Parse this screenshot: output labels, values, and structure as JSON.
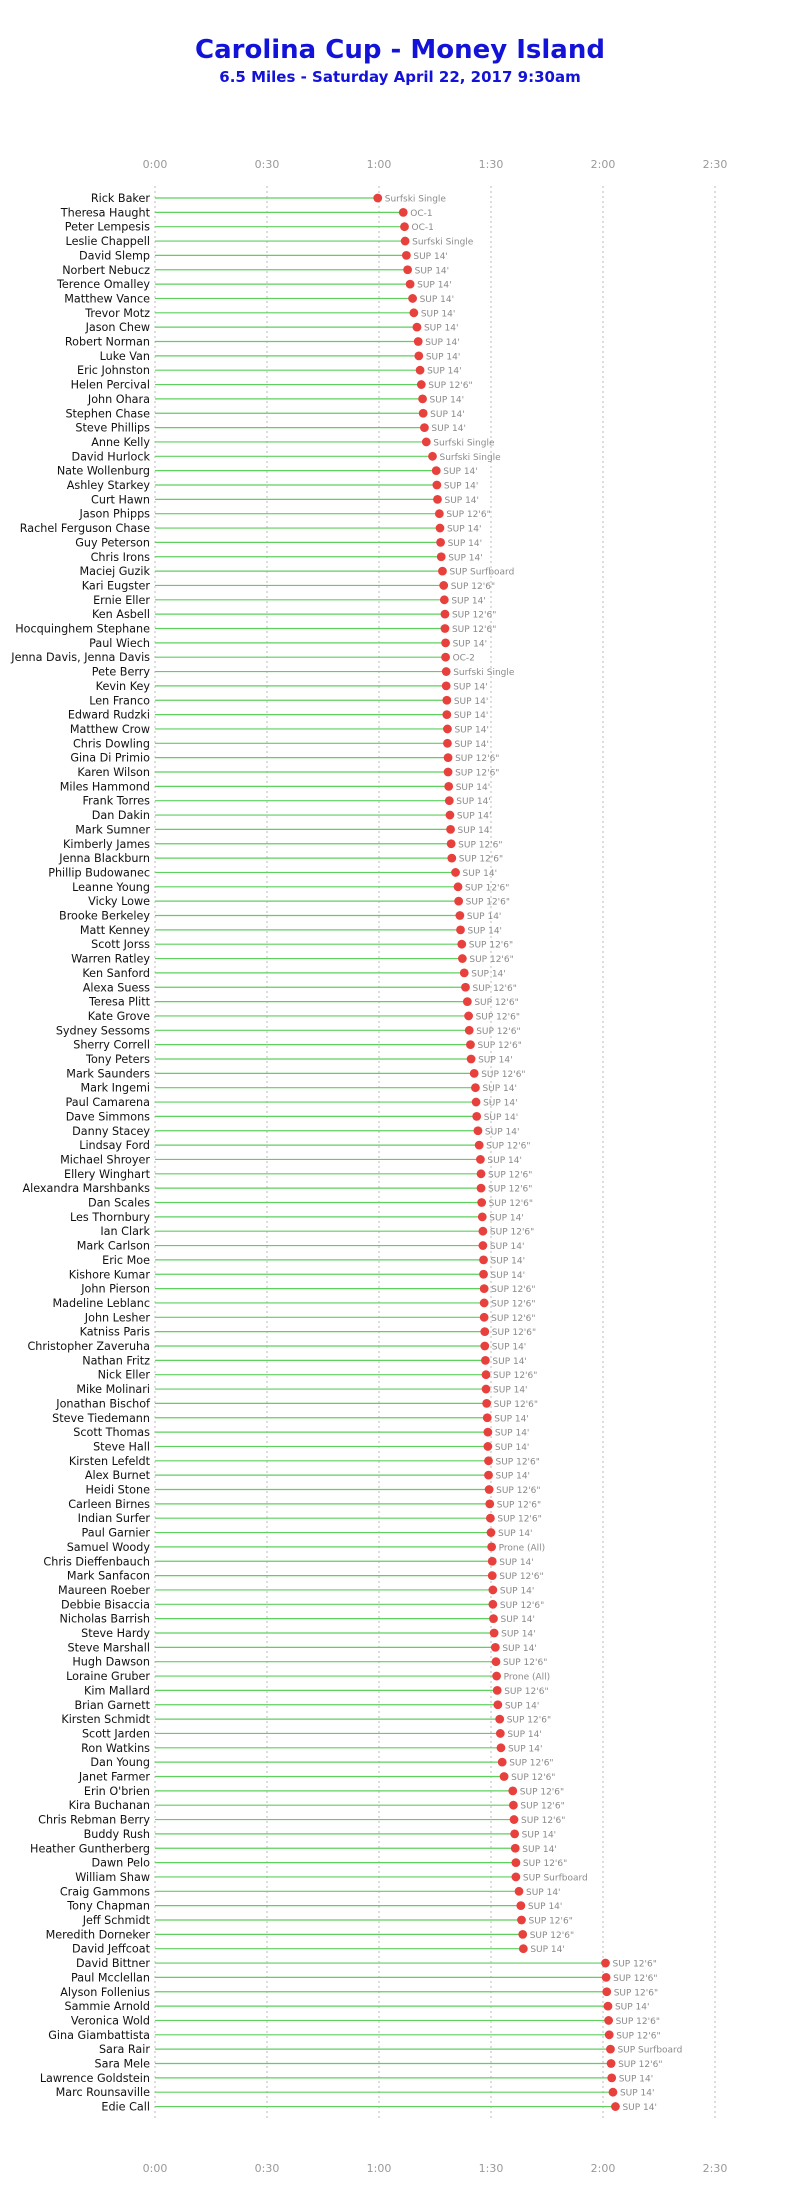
{
  "chart_data": {
    "type": "scatter",
    "title": "Carolina Cup - Money Island",
    "subtitle": "6.5 Miles - Saturday April 22, 2017 9:30am",
    "x_unit": "h:mm",
    "xlim": [
      "0:00",
      "2:30"
    ],
    "x_ticks": [
      "0:00",
      "0:30",
      "1:00",
      "1:30",
      "2:00",
      "2:30"
    ],
    "grid": true,
    "colors": {
      "marker": "#e8403c",
      "row_line": "#5ed05e",
      "grid": "#bbbbbb",
      "title": "#1212d8"
    },
    "points": [
      {
        "name": "Rick Baker",
        "time": "0:59:40",
        "class": "Surfski Single"
      },
      {
        "name": "Theresa Haught",
        "time": "1:06:30",
        "class": "OC-1"
      },
      {
        "name": "Peter Lempesis",
        "time": "1:06:50",
        "class": "OC-1"
      },
      {
        "name": "Leslie Chappell",
        "time": "1:07:00",
        "class": "Surfski Single"
      },
      {
        "name": "David Slemp",
        "time": "1:07:20",
        "class": "SUP 14'"
      },
      {
        "name": "Norbert Nebucz",
        "time": "1:07:40",
        "class": "SUP 14'"
      },
      {
        "name": "Terence Omalley",
        "time": "1:08:20",
        "class": "SUP 14'"
      },
      {
        "name": "Matthew Vance",
        "time": "1:09:00",
        "class": "SUP 14'"
      },
      {
        "name": "Trevor Motz",
        "time": "1:09:20",
        "class": "SUP 14'"
      },
      {
        "name": "Jason Chew",
        "time": "1:10:10",
        "class": "SUP 14'"
      },
      {
        "name": "Robert Norman",
        "time": "1:10:30",
        "class": "SUP 14'"
      },
      {
        "name": "Luke Van",
        "time": "1:10:40",
        "class": "SUP 14'"
      },
      {
        "name": "Eric Johnston",
        "time": "1:11:00",
        "class": "SUP 14'"
      },
      {
        "name": "Helen Percival",
        "time": "1:11:20",
        "class": "SUP 12'6\""
      },
      {
        "name": "John Ohara",
        "time": "1:11:40",
        "class": "SUP 14'"
      },
      {
        "name": "Stephen Chase",
        "time": "1:11:50",
        "class": "SUP 14'"
      },
      {
        "name": "Steve Phillips",
        "time": "1:12:10",
        "class": "SUP 14'"
      },
      {
        "name": "Anne Kelly",
        "time": "1:12:40",
        "class": "Surfski Single"
      },
      {
        "name": "David Hurlock",
        "time": "1:14:20",
        "class": "Surfski Single"
      },
      {
        "name": "Nate Wollenburg",
        "time": "1:15:20",
        "class": "SUP 14'"
      },
      {
        "name": "Ashley Starkey",
        "time": "1:15:30",
        "class": "SUP 14'"
      },
      {
        "name": "Curt Hawn",
        "time": "1:15:40",
        "class": "SUP 14'"
      },
      {
        "name": "Jason Phipps",
        "time": "1:16:10",
        "class": "SUP 12'6\""
      },
      {
        "name": "Rachel Ferguson Chase",
        "time": "1:16:20",
        "class": "SUP 14'"
      },
      {
        "name": "Guy Peterson",
        "time": "1:16:30",
        "class": "SUP 14'"
      },
      {
        "name": "Chris Irons",
        "time": "1:16:40",
        "class": "SUP 14'"
      },
      {
        "name": "Maciej Guzik",
        "time": "1:17:00",
        "class": "SUP Surfboard"
      },
      {
        "name": "Kari Eugster",
        "time": "1:17:20",
        "class": "SUP 12'6\""
      },
      {
        "name": "Ernie Eller",
        "time": "1:17:30",
        "class": "SUP 14'"
      },
      {
        "name": "Ken Asbell",
        "time": "1:17:40",
        "class": "SUP 12'6\""
      },
      {
        "name": "Hocquinghem Stephane",
        "time": "1:17:40",
        "class": "SUP 12'6\""
      },
      {
        "name": "Paul Wiech",
        "time": "1:17:50",
        "class": "SUP 14'"
      },
      {
        "name": "Jenna Davis, Jenna Davis",
        "time": "1:17:50",
        "class": "OC-2"
      },
      {
        "name": "Pete Berry",
        "time": "1:18:00",
        "class": "Surfski Single"
      },
      {
        "name": "Kevin Key",
        "time": "1:18:00",
        "class": "SUP 14'"
      },
      {
        "name": "Len Franco",
        "time": "1:18:10",
        "class": "SUP 14'"
      },
      {
        "name": "Edward Rudzki",
        "time": "1:18:10",
        "class": "SUP 14'"
      },
      {
        "name": "Matthew Crow",
        "time": "1:18:20",
        "class": "SUP 14'"
      },
      {
        "name": "Chris Dowling",
        "time": "1:18:20",
        "class": "SUP 14'"
      },
      {
        "name": "Gina Di Primio",
        "time": "1:18:30",
        "class": "SUP 12'6\""
      },
      {
        "name": "Karen Wilson",
        "time": "1:18:30",
        "class": "SUP 12'6\""
      },
      {
        "name": "Miles Hammond",
        "time": "1:18:40",
        "class": "SUP 14'"
      },
      {
        "name": "Frank Torres",
        "time": "1:18:50",
        "class": "SUP 14'"
      },
      {
        "name": "Dan Dakin",
        "time": "1:19:00",
        "class": "SUP 14'"
      },
      {
        "name": "Mark Sumner",
        "time": "1:19:10",
        "class": "SUP 14'"
      },
      {
        "name": "Kimberly James",
        "time": "1:19:20",
        "class": "SUP 12'6\""
      },
      {
        "name": "Jenna Blackburn",
        "time": "1:19:30",
        "class": "SUP 12'6\""
      },
      {
        "name": "Phillip Budowanec",
        "time": "1:20:30",
        "class": "SUP 14'"
      },
      {
        "name": "Leanne Young",
        "time": "1:21:10",
        "class": "SUP 12'6\""
      },
      {
        "name": "Vicky Lowe",
        "time": "1:21:20",
        "class": "SUP 12'6\""
      },
      {
        "name": "Brooke Berkeley",
        "time": "1:21:40",
        "class": "SUP 14'"
      },
      {
        "name": "Matt Kenney",
        "time": "1:21:50",
        "class": "SUP 14'"
      },
      {
        "name": "Scott Jorss",
        "time": "1:22:10",
        "class": "SUP 12'6\""
      },
      {
        "name": "Warren Ratley",
        "time": "1:22:20",
        "class": "SUP 12'6\""
      },
      {
        "name": "Ken Sanford",
        "time": "1:22:50",
        "class": "SUP 14'"
      },
      {
        "name": "Alexa Suess",
        "time": "1:23:10",
        "class": "SUP 12'6\""
      },
      {
        "name": "Teresa Plitt",
        "time": "1:23:40",
        "class": "SUP 12'6\""
      },
      {
        "name": "Kate Grove",
        "time": "1:24:00",
        "class": "SUP 12'6\""
      },
      {
        "name": "Sydney Sessoms",
        "time": "1:24:10",
        "class": "SUP 12'6\""
      },
      {
        "name": "Sherry Correll",
        "time": "1:24:30",
        "class": "SUP 12'6\""
      },
      {
        "name": "Tony Peters",
        "time": "1:24:40",
        "class": "SUP 14'"
      },
      {
        "name": "Mark Saunders",
        "time": "1:25:30",
        "class": "SUP 12'6\""
      },
      {
        "name": "Mark Ingemi",
        "time": "1:25:50",
        "class": "SUP 14'"
      },
      {
        "name": "Paul Camarena",
        "time": "1:26:00",
        "class": "SUP 14'"
      },
      {
        "name": "Dave Simmons",
        "time": "1:26:10",
        "class": "SUP 14'"
      },
      {
        "name": "Danny Stacey",
        "time": "1:26:30",
        "class": "SUP 14'"
      },
      {
        "name": "Lindsay Ford",
        "time": "1:26:50",
        "class": "SUP 12'6\""
      },
      {
        "name": "Michael Shroyer",
        "time": "1:27:10",
        "class": "SUP 14'"
      },
      {
        "name": "Ellery Winghart",
        "time": "1:27:20",
        "class": "SUP 12'6\""
      },
      {
        "name": "Alexandra Marshbanks",
        "time": "1:27:20",
        "class": "SUP 12'6\""
      },
      {
        "name": "Dan Scales",
        "time": "1:27:30",
        "class": "SUP 12'6\""
      },
      {
        "name": "Les Thornbury",
        "time": "1:27:40",
        "class": "SUP 14'"
      },
      {
        "name": "Ian Clark",
        "time": "1:27:50",
        "class": "SUP 12'6\""
      },
      {
        "name": "Mark Carlson",
        "time": "1:27:50",
        "class": "SUP 14'"
      },
      {
        "name": "Eric Moe",
        "time": "1:28:00",
        "class": "SUP 14'"
      },
      {
        "name": "Kishore Kumar",
        "time": "1:28:00",
        "class": "SUP 14'"
      },
      {
        "name": "John Pierson",
        "time": "1:28:10",
        "class": "SUP 12'6\""
      },
      {
        "name": "Madeline Leblanc",
        "time": "1:28:10",
        "class": "SUP 12'6\""
      },
      {
        "name": "John Lesher",
        "time": "1:28:10",
        "class": "SUP 12'6\""
      },
      {
        "name": "Katniss Paris",
        "time": "1:28:20",
        "class": "SUP 12'6\""
      },
      {
        "name": "Christopher Zaveruha",
        "time": "1:28:20",
        "class": "SUP 14'"
      },
      {
        "name": "Nathan Fritz",
        "time": "1:28:30",
        "class": "SUP 14'"
      },
      {
        "name": "Nick Eller",
        "time": "1:28:40",
        "class": "SUP 12'6\""
      },
      {
        "name": "Mike Molinari",
        "time": "1:28:40",
        "class": "SUP 14'"
      },
      {
        "name": "Jonathan Bischof",
        "time": "1:28:50",
        "class": "SUP 12'6\""
      },
      {
        "name": "Steve Tiedemann",
        "time": "1:29:00",
        "class": "SUP 14'"
      },
      {
        "name": "Scott Thomas",
        "time": "1:29:10",
        "class": "SUP 14'"
      },
      {
        "name": "Steve Hall",
        "time": "1:29:10",
        "class": "SUP 14'"
      },
      {
        "name": "Kirsten Lefeldt",
        "time": "1:29:20",
        "class": "SUP 12'6\""
      },
      {
        "name": "Alex Burnet",
        "time": "1:29:20",
        "class": "SUP 14'"
      },
      {
        "name": "Heidi Stone",
        "time": "1:29:30",
        "class": "SUP 12'6\""
      },
      {
        "name": "Carleen Birnes",
        "time": "1:29:40",
        "class": "SUP 12'6\""
      },
      {
        "name": "Indian Surfer",
        "time": "1:29:50",
        "class": "SUP 12'6\""
      },
      {
        "name": "Paul Garnier",
        "time": "1:30:00",
        "class": "SUP 14'"
      },
      {
        "name": "Samuel Woody",
        "time": "1:30:10",
        "class": "Prone (All)"
      },
      {
        "name": "Chris Dieffenbauch",
        "time": "1:30:20",
        "class": "SUP 14'"
      },
      {
        "name": "Mark Sanfacon",
        "time": "1:30:20",
        "class": "SUP 12'6\""
      },
      {
        "name": "Maureen Roeber",
        "time": "1:30:30",
        "class": "SUP 14'"
      },
      {
        "name": "Debbie Bisaccia",
        "time": "1:30:30",
        "class": "SUP 12'6\""
      },
      {
        "name": "Nicholas Barrish",
        "time": "1:30:40",
        "class": "SUP 14'"
      },
      {
        "name": "Steve Hardy",
        "time": "1:30:50",
        "class": "SUP 14'"
      },
      {
        "name": "Steve Marshall",
        "time": "1:31:10",
        "class": "SUP 14'"
      },
      {
        "name": "Hugh Dawson",
        "time": "1:31:20",
        "class": "SUP 12'6\""
      },
      {
        "name": "Loraine Gruber",
        "time": "1:31:30",
        "class": "Prone (All)"
      },
      {
        "name": "Kim Mallard",
        "time": "1:31:40",
        "class": "SUP 12'6\""
      },
      {
        "name": "Brian Garnett",
        "time": "1:31:50",
        "class": "SUP 14'"
      },
      {
        "name": "Kirsten Schmidt",
        "time": "1:32:20",
        "class": "SUP 12'6\""
      },
      {
        "name": "Scott Jarden",
        "time": "1:32:30",
        "class": "SUP 14'"
      },
      {
        "name": "Ron Watkins",
        "time": "1:32:40",
        "class": "SUP 14'"
      },
      {
        "name": "Dan Young",
        "time": "1:33:00",
        "class": "SUP 12'6\""
      },
      {
        "name": "Janet Farmer",
        "time": "1:33:30",
        "class": "SUP 12'6\""
      },
      {
        "name": "Erin O'brien",
        "time": "1:35:50",
        "class": "SUP 12'6\""
      },
      {
        "name": "Kira Buchanan",
        "time": "1:36:00",
        "class": "SUP 12'6\""
      },
      {
        "name": "Chris Rebman Berry",
        "time": "1:36:10",
        "class": "SUP 12'6\""
      },
      {
        "name": "Buddy Rush",
        "time": "1:36:20",
        "class": "SUP 14'"
      },
      {
        "name": "Heather Guntherberg",
        "time": "1:36:30",
        "class": "SUP 14'"
      },
      {
        "name": "Dawn Pelo",
        "time": "1:36:40",
        "class": "SUP 12'6\""
      },
      {
        "name": "William Shaw",
        "time": "1:36:40",
        "class": "SUP Surfboard"
      },
      {
        "name": "Craig Gammons",
        "time": "1:37:30",
        "class": "SUP 14'"
      },
      {
        "name": "Tony Chapman",
        "time": "1:38:00",
        "class": "SUP 14'"
      },
      {
        "name": "Jeff Schmidt",
        "time": "1:38:10",
        "class": "SUP 12'6\""
      },
      {
        "name": "Meredith Dorneker",
        "time": "1:38:30",
        "class": "SUP 12'6\""
      },
      {
        "name": "David Jeffcoat",
        "time": "1:38:40",
        "class": "SUP 14'"
      },
      {
        "name": "David Bittner",
        "time": "2:00:40",
        "class": "SUP 12'6\""
      },
      {
        "name": "Paul Mcclellan",
        "time": "2:00:50",
        "class": "SUP 12'6\""
      },
      {
        "name": "Alyson Follenius",
        "time": "2:01:00",
        "class": "SUP 12'6\""
      },
      {
        "name": "Sammie Arnold",
        "time": "2:01:20",
        "class": "SUP 14'"
      },
      {
        "name": "Veronica Wold",
        "time": "2:01:30",
        "class": "SUP 12'6\""
      },
      {
        "name": "Gina Giambattista",
        "time": "2:01:40",
        "class": "SUP 12'6\""
      },
      {
        "name": "Sara Rair",
        "time": "2:02:00",
        "class": "SUP Surfboard"
      },
      {
        "name": "Sara Mele",
        "time": "2:02:10",
        "class": "SUP 12'6\""
      },
      {
        "name": "Lawrence Goldstein",
        "time": "2:02:20",
        "class": "SUP 14'"
      },
      {
        "name": "Marc Rounsaville",
        "time": "2:02:40",
        "class": "SUP 14'"
      },
      {
        "name": "Edie Call",
        "time": "2:03:20",
        "class": "SUP 14'"
      }
    ]
  }
}
